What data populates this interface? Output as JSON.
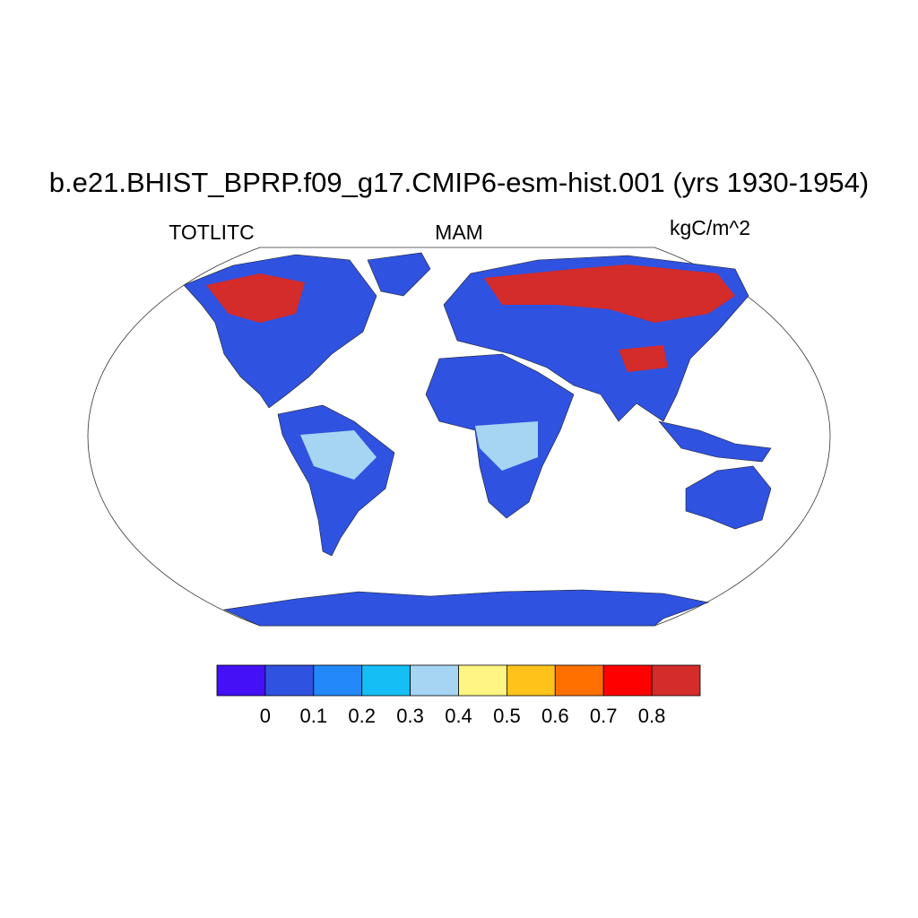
{
  "title": "b.e21.BHIST_BPRP.f09_g17.CMIP6-esm-hist.001 (yrs 1930-1954)",
  "left_label": "TOTLITC",
  "center_label": "MAM",
  "right_label": "kgC/m^2",
  "colorbar": {
    "colors": [
      "#4410f5",
      "#2f52e0",
      "#2388f8",
      "#15bff5",
      "#a5d5f2",
      "#fff582",
      "#ffc21a",
      "#ff7000",
      "#ff0000",
      "#d42b2b"
    ],
    "levels": [
      0,
      0.1,
      0.2,
      0.3,
      0.4,
      0.5,
      0.6,
      0.7,
      0.8
    ]
  }
}
